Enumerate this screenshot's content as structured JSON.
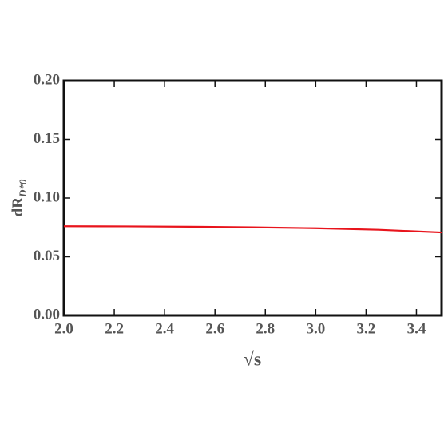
{
  "chart_data": {
    "type": "line",
    "x_label": "√s",
    "y_label": "dR",
    "y_label_sub": "D*0",
    "x": [
      2.0,
      2.25,
      2.5,
      2.75,
      3.0,
      3.25,
      3.5
    ],
    "series": [
      {
        "color": "#e8141c",
        "values": [
          0.076,
          0.0759,
          0.0756,
          0.0751,
          0.0743,
          0.073,
          0.0707
        ]
      }
    ],
    "xlim": [
      2.0,
      3.5
    ],
    "ylim": [
      0,
      0.2
    ],
    "xticks": [
      {
        "value": 2.0,
        "label": "2.0"
      },
      2.2,
      2.4,
      2.6,
      2.8,
      {
        "value": 3.0,
        "label": "3.0"
      },
      3.2,
      3.4
    ],
    "yticks": [
      {
        "value": 0,
        "label": "0.00"
      },
      0.05,
      {
        "value": 0.1,
        "label": "0.10"
      },
      0.15,
      {
        "value": 0.2,
        "label": "0.20"
      }
    ]
  }
}
